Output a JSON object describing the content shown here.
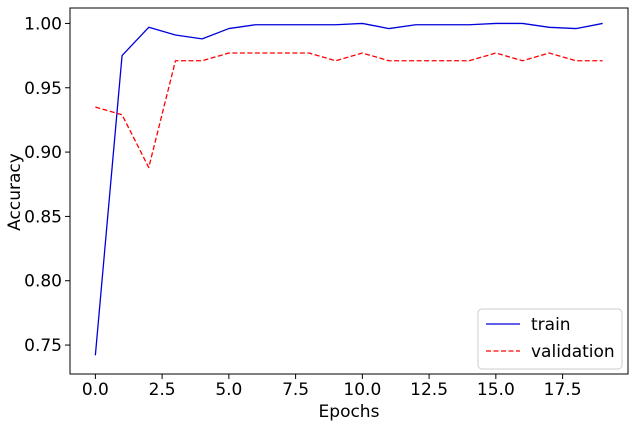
{
  "chart_data": {
    "type": "line",
    "title": "",
    "xlabel": "Epochs",
    "ylabel": "Accuracy",
    "xlim": [
      -0.95,
      19.95
    ],
    "ylim": [
      0.7275,
      1.012
    ],
    "x_ticks": [
      0.0,
      2.5,
      5.0,
      7.5,
      10.0,
      12.5,
      15.0,
      17.5
    ],
    "x_tick_labels": [
      "0.0",
      "2.5",
      "5.0",
      "7.5",
      "10.0",
      "12.5",
      "15.0",
      "17.5"
    ],
    "y_ticks": [
      0.75,
      0.8,
      0.85,
      0.9,
      0.95,
      1.0
    ],
    "y_tick_labels": [
      "0.75",
      "0.80",
      "0.85",
      "0.90",
      "0.95",
      "1.00"
    ],
    "grid": false,
    "legend_position": "lower-right",
    "x": [
      0,
      1,
      2,
      3,
      4,
      5,
      6,
      7,
      8,
      9,
      10,
      11,
      12,
      13,
      14,
      15,
      16,
      17,
      18,
      19
    ],
    "series": [
      {
        "name": "train",
        "color": "#0000dd",
        "style": "solid",
        "values": [
          0.742,
          0.975,
          0.997,
          0.991,
          0.988,
          0.996,
          0.999,
          0.999,
          0.999,
          0.999,
          1.0,
          0.996,
          0.999,
          0.999,
          0.999,
          1.0,
          1.0,
          0.997,
          0.996,
          1.0
        ]
      },
      {
        "name": "validation",
        "color": "#ff0000",
        "style": "dashed",
        "values": [
          0.935,
          0.929,
          0.888,
          0.971,
          0.971,
          0.977,
          0.977,
          0.977,
          0.977,
          0.971,
          0.977,
          0.971,
          0.971,
          0.971,
          0.971,
          0.977,
          0.971,
          0.977,
          0.971,
          0.971
        ]
      }
    ]
  }
}
